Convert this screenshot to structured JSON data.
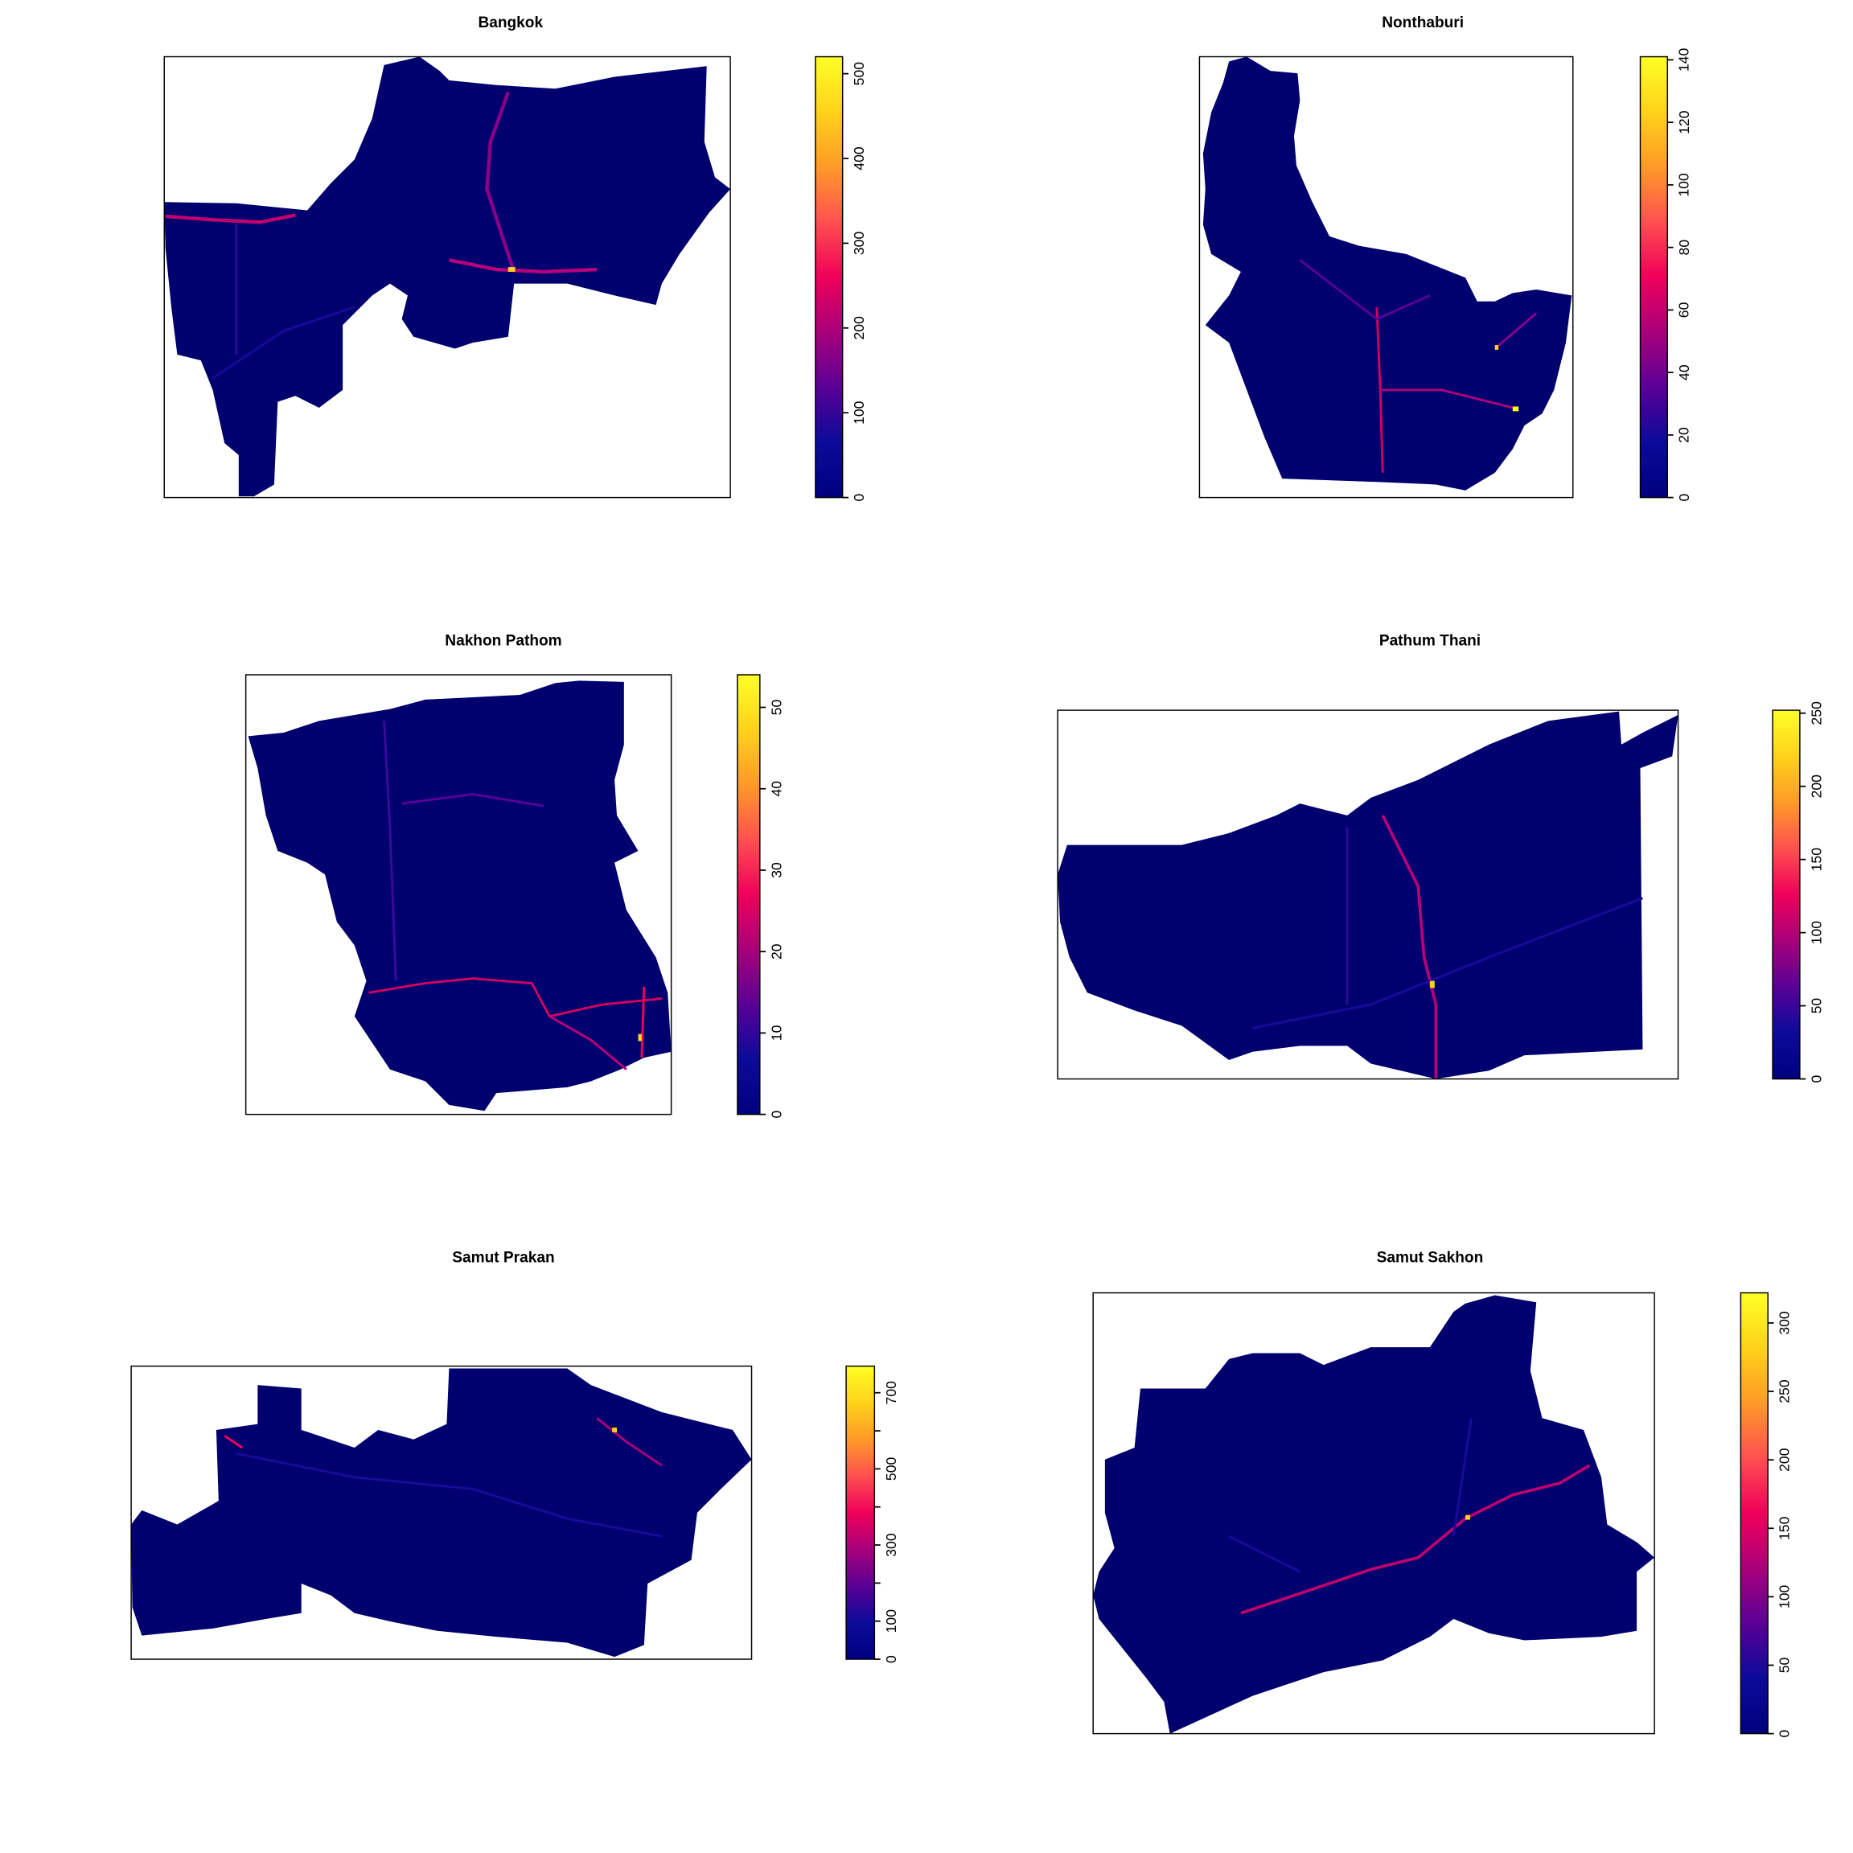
{
  "palette": [
    "#00007F",
    "#0B0B9A",
    "#5A0096",
    "#A8007A",
    "#F0005A",
    "#FF5050",
    "#FF9A28",
    "#FFD21A",
    "#FFFF26"
  ],
  "region_fill": "#00006E",
  "chart_data": [
    {
      "type": "heatmap",
      "title": "Bangkok",
      "zlim": [
        0,
        520
      ],
      "ticks": [
        0,
        100,
        200,
        300,
        400,
        500
      ],
      "tick_labels": [
        "0",
        "100",
        "200",
        "300",
        "400",
        "500"
      ],
      "axes": "none",
      "legend": "right"
    },
    {
      "type": "heatmap",
      "title": "Nonthaburi",
      "zlim": [
        0,
        141
      ],
      "ticks": [
        0,
        20,
        40,
        60,
        80,
        100,
        120,
        140
      ],
      "tick_labels": [
        "0",
        "20",
        "40",
        "60",
        "80",
        "100",
        "120",
        "140"
      ],
      "axes": "none",
      "legend": "right"
    },
    {
      "type": "heatmap",
      "title": "Nakhon Pathom",
      "zlim": [
        0,
        54
      ],
      "ticks": [
        0,
        10,
        20,
        30,
        40,
        50
      ],
      "tick_labels": [
        "0",
        "10",
        "20",
        "30",
        "40",
        "50"
      ],
      "axes": "none",
      "legend": "right"
    },
    {
      "type": "heatmap",
      "title": "Pathum Thani",
      "zlim": [
        0,
        252
      ],
      "ticks": [
        0,
        50,
        100,
        150,
        200,
        250
      ],
      "tick_labels": [
        "0",
        "50",
        "100",
        "150",
        "200",
        "250"
      ],
      "axes": "none",
      "legend": "right"
    },
    {
      "type": "heatmap",
      "title": "Samut Prakan",
      "zlim": [
        0,
        770
      ],
      "ticks": [
        0,
        100,
        200,
        300,
        400,
        500,
        600,
        700
      ],
      "tick_labels": [
        "0",
        "100",
        "",
        "300",
        "",
        "500",
        "",
        "700"
      ],
      "axes": "none",
      "legend": "right"
    },
    {
      "type": "heatmap",
      "title": "Samut Sakhon",
      "zlim": [
        0,
        322
      ],
      "ticks": [
        0,
        50,
        100,
        150,
        200,
        250,
        300
      ],
      "tick_labels": [
        "0",
        "50",
        "100",
        "150",
        "200",
        "250",
        "300"
      ],
      "axes": "none",
      "legend": "right"
    }
  ]
}
